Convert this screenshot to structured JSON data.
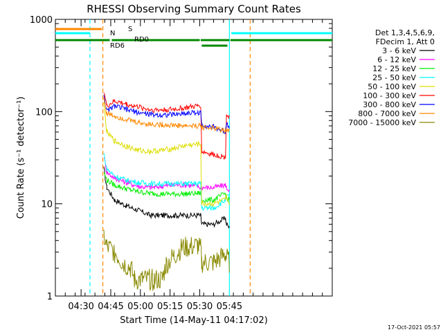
{
  "chart_data": {
    "type": "line",
    "title": "RHESSI Observing Summary Count Rates",
    "xlabel": "Start Time (14-May-11 04:17:02)",
    "ylabel": "Count Rate (s⁻¹ detector⁻¹)",
    "y_scale": "log",
    "ylim": [
      1,
      1000
    ],
    "y_ticks": [
      "1",
      "10",
      "100",
      "1000"
    ],
    "x_range_min": [
      0,
      140
    ],
    "x_ticks": [
      {
        "label": "04:30",
        "min": 13
      },
      {
        "label": "04:45",
        "min": 28
      },
      {
        "label": "05:00",
        "min": 43
      },
      {
        "label": "05:15",
        "min": 58
      },
      {
        "label": "05:30",
        "min": 73
      },
      {
        "label": "05:45",
        "min": 88
      }
    ],
    "legend_header": [
      "Det 1,3,4,5,6,9,",
      "FDecim 1, Att 0"
    ],
    "series": [
      {
        "name": "3 - 6 keV",
        "color": "#000000",
        "points": [
          [
            24.5,
            24
          ],
          [
            26,
            15
          ],
          [
            30,
            11
          ],
          [
            36,
            9.5
          ],
          [
            42,
            8.5
          ],
          [
            48,
            7.5
          ],
          [
            54,
            7.5
          ],
          [
            60,
            7.5
          ],
          [
            66,
            7.5
          ],
          [
            72,
            7.5
          ],
          [
            73.5,
            7.5
          ],
          [
            74,
            6
          ],
          [
            80,
            6
          ],
          [
            86,
            7
          ],
          [
            86.5,
            6
          ],
          [
            88,
            5.5
          ]
        ]
      },
      {
        "name": "6 - 12 keV",
        "color": "#ff00ff",
        "points": [
          [
            24.5,
            33
          ],
          [
            26,
            22
          ],
          [
            30,
            19
          ],
          [
            36,
            17
          ],
          [
            42,
            15.5
          ],
          [
            48,
            15
          ],
          [
            54,
            15.5
          ],
          [
            60,
            16
          ],
          [
            66,
            16
          ],
          [
            72,
            15.5
          ],
          [
            73.5,
            15
          ],
          [
            74,
            15
          ],
          [
            80,
            15
          ],
          [
            86,
            16
          ],
          [
            86.5,
            15
          ],
          [
            88,
            14
          ]
        ]
      },
      {
        "name": "12 - 25 keV",
        "color": "#00ee00",
        "points": [
          [
            24.5,
            22
          ],
          [
            26,
            18
          ],
          [
            30,
            16
          ],
          [
            36,
            14.5
          ],
          [
            42,
            13.5
          ],
          [
            48,
            13
          ],
          [
            54,
            12.8
          ],
          [
            60,
            12.8
          ],
          [
            66,
            12.8
          ],
          [
            72,
            13
          ],
          [
            73.5,
            13
          ],
          [
            74,
            11
          ],
          [
            80,
            11
          ],
          [
            86,
            13
          ],
          [
            86.5,
            11.5
          ],
          [
            88,
            11
          ]
        ]
      },
      {
        "name": "25 - 50 keV",
        "color": "#00ffff",
        "points": [
          [
            24.5,
            35
          ],
          [
            26,
            24
          ],
          [
            30,
            20
          ],
          [
            36,
            18
          ],
          [
            42,
            17
          ],
          [
            48,
            16.5
          ],
          [
            54,
            16.5
          ],
          [
            60,
            16.5
          ],
          [
            66,
            16.5
          ],
          [
            72,
            16.5
          ],
          [
            73.5,
            16.5
          ],
          [
            74,
            9
          ],
          [
            80,
            9
          ],
          [
            86,
            11
          ],
          [
            86.5,
            12
          ],
          [
            88,
            12
          ]
        ]
      },
      {
        "name": "50 - 100 keV",
        "color": "#dddd00",
        "points": [
          [
            24.5,
            120
          ],
          [
            26,
            60
          ],
          [
            30,
            48
          ],
          [
            36,
            42
          ],
          [
            42,
            38
          ],
          [
            48,
            37
          ],
          [
            54,
            38
          ],
          [
            60,
            40
          ],
          [
            66,
            43
          ],
          [
            72,
            44
          ],
          [
            73.5,
            44
          ],
          [
            74,
            10
          ],
          [
            80,
            10
          ],
          [
            86,
            11
          ],
          [
            86.5,
            12
          ],
          [
            88,
            10
          ]
        ]
      },
      {
        "name": "100 - 300 keV",
        "color": "#ff0000",
        "points": [
          [
            24.5,
            170
          ],
          [
            26,
            115
          ],
          [
            30,
            130
          ],
          [
            36,
            120
          ],
          [
            42,
            112
          ],
          [
            48,
            105
          ],
          [
            54,
            104
          ],
          [
            60,
            106
          ],
          [
            66,
            110
          ],
          [
            72,
            115
          ],
          [
            73.5,
            118
          ],
          [
            74,
            37
          ],
          [
            80,
            34
          ],
          [
            84,
            33
          ],
          [
            86,
            32
          ],
          [
            86.5,
            93
          ],
          [
            88,
            88
          ]
        ]
      },
      {
        "name": "300 - 800 keV",
        "color": "#0000ff",
        "points": [
          [
            24.5,
            155
          ],
          [
            26,
            100
          ],
          [
            30,
            115
          ],
          [
            36,
            105
          ],
          [
            42,
            98
          ],
          [
            48,
            93
          ],
          [
            54,
            92
          ],
          [
            60,
            93
          ],
          [
            66,
            96
          ],
          [
            72,
            98
          ],
          [
            73.5,
            97
          ],
          [
            74,
            72
          ],
          [
            80,
            68
          ],
          [
            86,
            60
          ],
          [
            86.5,
            75
          ],
          [
            88,
            70
          ]
        ]
      },
      {
        "name": "800 - 7000 keV",
        "color": "#ff8800",
        "points": [
          [
            24.5,
            140
          ],
          [
            26,
            95
          ],
          [
            30,
            90
          ],
          [
            36,
            82
          ],
          [
            42,
            76
          ],
          [
            48,
            73
          ],
          [
            54,
            72
          ],
          [
            60,
            71
          ],
          [
            66,
            70
          ],
          [
            72,
            70
          ],
          [
            73.5,
            70
          ],
          [
            74,
            68
          ],
          [
            80,
            66
          ],
          [
            86,
            62
          ],
          [
            86.5,
            65
          ],
          [
            88,
            62
          ]
        ]
      },
      {
        "name": "7000 - 15000 keV",
        "color": "#888800",
        "points": [
          [
            24.5,
            4.5
          ],
          [
            26,
            3.4
          ],
          [
            30,
            3.0
          ],
          [
            34,
            2.3
          ],
          [
            38,
            2.0
          ],
          [
            40,
            1.5
          ],
          [
            44,
            1.5
          ],
          [
            50,
            1.5
          ],
          [
            54,
            1.5
          ],
          [
            56,
            2.2
          ],
          [
            60,
            2.7
          ],
          [
            64,
            3.3
          ],
          [
            68,
            3.4
          ],
          [
            72,
            3.5
          ],
          [
            73.5,
            3.2
          ],
          [
            74,
            2.3
          ],
          [
            80,
            2.3
          ],
          [
            86,
            2.8
          ],
          [
            86.5,
            2.6
          ],
          [
            88,
            2.3
          ]
        ]
      }
    ],
    "flag_labels": [
      {
        "text": "S",
        "color": "#ff8800"
      },
      {
        "text": "N",
        "color": "#00ffff"
      },
      {
        "text": "RD6",
        "color": "#008800"
      },
      {
        "text": "RD0",
        "color": "#008800"
      }
    ],
    "flag_bars": [
      {
        "color": "#ff8800",
        "level": "S",
        "spans": [
          [
            0,
            23.5
          ]
        ]
      },
      {
        "color": "#00ffff",
        "level": "N",
        "spans": [
          [
            0,
            17.5
          ],
          [
            89,
            140
          ]
        ]
      },
      {
        "color": "#008800",
        "level": "RD0",
        "spans": [
          [
            0,
            27.5
          ],
          [
            28.5,
            73
          ],
          [
            73.5,
            88
          ],
          [
            88.5,
            140
          ]
        ]
      },
      {
        "color": "#008800",
        "level": "RD6",
        "spans": [
          [
            74,
            87
          ]
        ]
      }
    ],
    "vlines": [
      {
        "min": 17.5,
        "color": "#00ffff",
        "dashed": true
      },
      {
        "min": 24,
        "color": "#ff8800",
        "dashed": true
      },
      {
        "min": 88,
        "color": "#00ffff",
        "dashed": false
      },
      {
        "min": 98.5,
        "color": "#ff8800",
        "dashed": true
      }
    ],
    "footer_date": "17-Oct-2021 05:57"
  }
}
